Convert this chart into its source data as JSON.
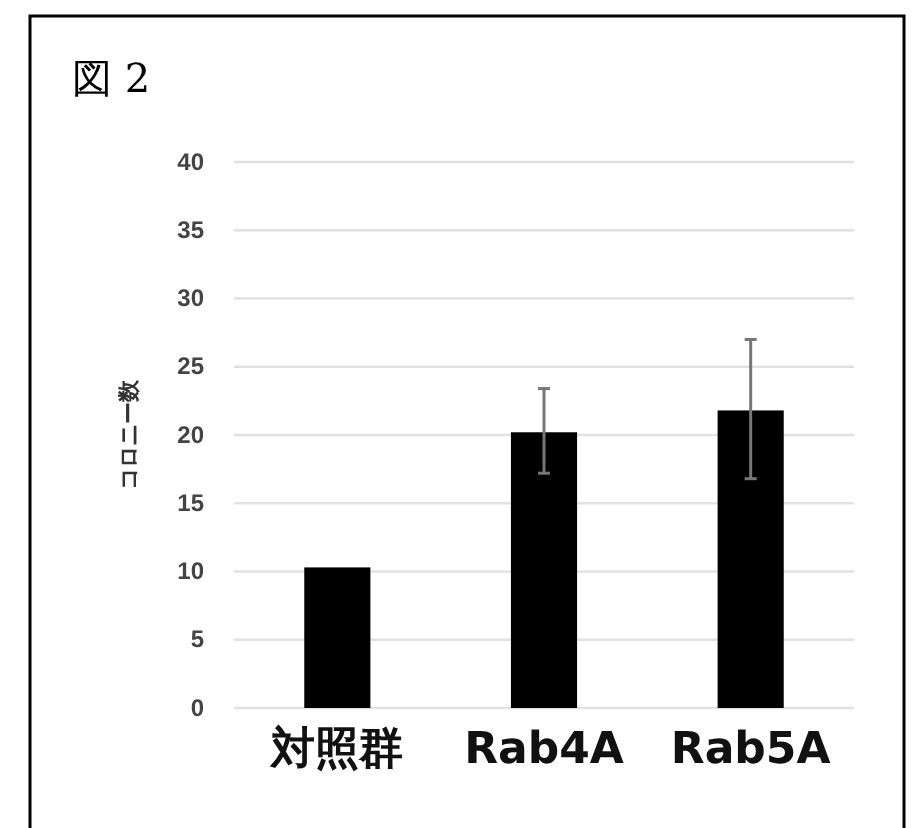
{
  "chart_data": {
    "type": "bar",
    "title": "図 2",
    "ylabel": "コロニー数",
    "categories": [
      "対照群",
      "Rab4A",
      "Rab5A"
    ],
    "values": [
      10.3,
      20.2,
      21.8
    ],
    "errors": [
      null,
      [
        17.2,
        23.4
      ],
      [
        16.8,
        27.0
      ]
    ],
    "color": "#000000",
    "ylim": [
      0,
      40
    ],
    "yticks": [
      0,
      5,
      10,
      15,
      20,
      25,
      30,
      35,
      40
    ],
    "grid": "y"
  }
}
